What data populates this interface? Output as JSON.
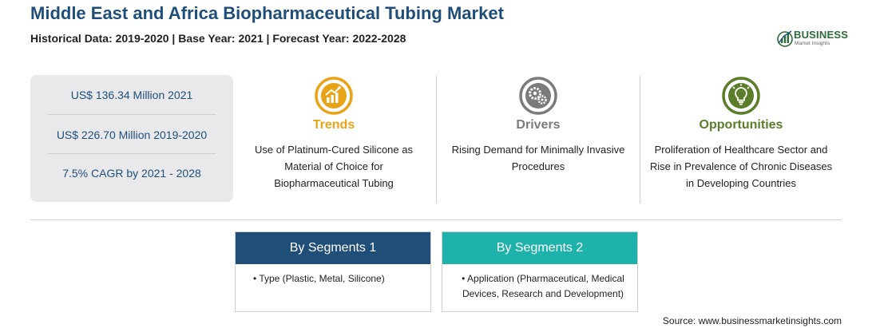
{
  "header": {
    "title": "Middle East and Africa Biopharmaceutical Tubing Market",
    "subtitle": "Historical Data: 2019-2020 | Base Year: 2021 | Forecast Year: 2022-2028"
  },
  "logo": {
    "name": "BUSINESS",
    "tagline": "Market Insights",
    "icon": "globe-chart-icon"
  },
  "stats": [
    "US$ 136.34 Million 2021",
    "US$ 226.70 Million 2019-2020",
    "7.5% CAGR by 2021 - 2028"
  ],
  "columns": {
    "trends": {
      "title": "Trends",
      "text": "Use of Platinum-Cured Silicone as Material of Choice for Biopharmaceutical Tubing",
      "icon": "trend-chart-icon",
      "color": "#e8a317"
    },
    "drivers": {
      "title": "Drivers",
      "text": "Rising Demand for Minimally Invasive Procedures",
      "icon": "gears-icon",
      "color": "#7b7b7b"
    },
    "opportunities": {
      "title": "Opportunities",
      "text": "Proliferation of Healthcare Sector and Rise in Prevalence of Chronic Diseases in Developing Countries",
      "icon": "lightbulb-icon",
      "color": "#5a7d2a"
    }
  },
  "segments": [
    {
      "title": "By Segments 1",
      "items": [
        "• Type (Plastic, Metal, Silicone)"
      ],
      "color": "#1f4e79"
    },
    {
      "title": "By Segments 2",
      "items": [
        "• Application (Pharmaceutical, Medical Devices, Research and Development)"
      ],
      "color": "#1fb2aa"
    }
  ],
  "source": "Source: www.businessmarketinsights.com"
}
